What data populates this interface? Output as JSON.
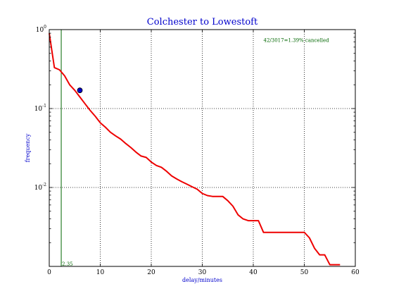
{
  "chart_data": {
    "type": "line",
    "title": "Colchester to Lowestoft",
    "xlabel": "delay/minutes",
    "ylabel": "frequency",
    "xlim": [
      0,
      60
    ],
    "ylim": [
      0.001,
      1.0
    ],
    "yscale": "log",
    "grid": true,
    "x_ticks": [
      "0",
      "10",
      "20",
      "30",
      "40",
      "50",
      "60"
    ],
    "y_ticks": [
      {
        "base": "10",
        "exp": "0"
      },
      {
        "base": "10",
        "exp": "-1"
      },
      {
        "base": "10",
        "exp": "-2"
      }
    ],
    "series": [
      {
        "color": "#ee0000",
        "x": [
          0,
          1,
          2,
          3,
          4,
          5,
          6,
          7,
          8,
          9,
          10,
          11,
          12,
          13,
          14,
          15,
          16,
          17,
          18,
          19,
          20,
          21,
          22,
          23,
          24,
          25,
          26,
          27,
          28,
          29,
          30,
          31,
          32,
          33,
          34,
          35,
          36,
          37,
          38,
          39,
          40,
          41,
          42,
          43,
          44,
          45,
          46,
          47,
          48,
          49,
          50,
          51,
          52,
          53,
          54,
          55,
          56,
          57
        ],
        "y": [
          0.9,
          0.33,
          0.31,
          0.26,
          0.2,
          0.17,
          0.14,
          0.115,
          0.095,
          0.08,
          0.066,
          0.058,
          0.05,
          0.045,
          0.041,
          0.036,
          0.032,
          0.028,
          0.025,
          0.024,
          0.021,
          0.019,
          0.018,
          0.016,
          0.014,
          0.0128,
          0.0118,
          0.011,
          0.0102,
          0.0095,
          0.0084,
          0.0079,
          0.0077,
          0.0077,
          0.0077,
          0.0068,
          0.0058,
          0.0045,
          0.004,
          0.0038,
          0.0038,
          0.0038,
          0.0027,
          0.0027,
          0.0027,
          0.0027,
          0.0027,
          0.0027,
          0.0027,
          0.0027,
          0.0027,
          0.0023,
          0.0017,
          0.0014,
          0.0014,
          0.00105,
          0.00105,
          0.00105
        ]
      }
    ],
    "marker": {
      "x": 6,
      "y": 0.17,
      "color": "#0000cc"
    },
    "vline": {
      "x": 2.35,
      "color": "#006600",
      "label": "2.35"
    },
    "annotation": {
      "text": "42/3017=1.39% cancelled",
      "x": 42,
      "y": 0.7,
      "color": "#006600"
    }
  }
}
